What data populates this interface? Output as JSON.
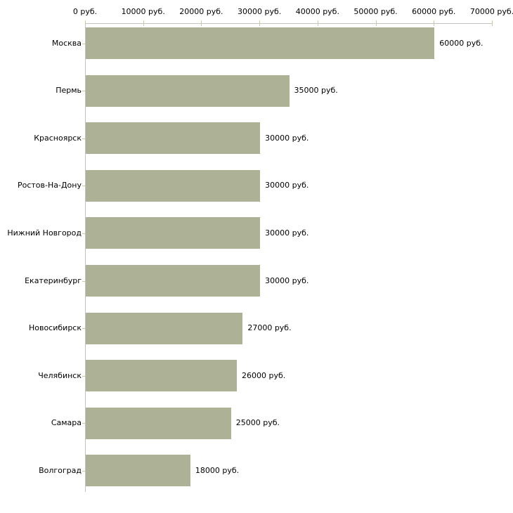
{
  "chart_data": {
    "type": "bar",
    "orientation": "horizontal",
    "title": "",
    "xlabel": "",
    "ylabel": "",
    "unit": "руб.",
    "xlim": [
      0,
      70000
    ],
    "x_tick_step": 10000,
    "x_ticks": [
      "0 руб.",
      "10000 руб.",
      "20000 руб.",
      "30000 руб.",
      "40000 руб.",
      "50000 руб.",
      "60000 руб.",
      "70000 руб."
    ],
    "categories": [
      "Москва",
      "Пермь",
      "Красноярск",
      "Ростов-На-Дону",
      "Нижний Новгород",
      "Екатеринбург",
      "Новосибирск",
      "Челябинск",
      "Самара",
      "Волгоград"
    ],
    "values": [
      60000,
      35000,
      30000,
      30000,
      30000,
      30000,
      27000,
      26000,
      25000,
      18000
    ],
    "value_labels": [
      "60000 руб.",
      "35000 руб.",
      "30000 руб.",
      "30000 руб.",
      "30000 руб.",
      "30000 руб.",
      "27000 руб.",
      "26000 руб.",
      "25000 руб.",
      "18000 руб."
    ],
    "grid": false,
    "legend": false
  },
  "colors": {
    "bar": "#adb297",
    "axis": "#c3c3c3",
    "tick": "#c9c9a3",
    "text": "#000000",
    "background": "#ffffff"
  }
}
